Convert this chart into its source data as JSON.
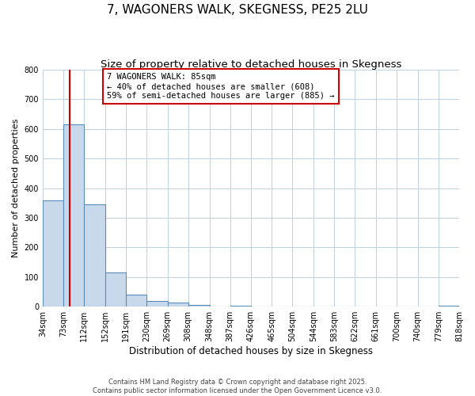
{
  "title": "7, WAGONERS WALK, SKEGNESS, PE25 2LU",
  "subtitle": "Size of property relative to detached houses in Skegness",
  "xlabel": "Distribution of detached houses by size in Skegness",
  "ylabel": "Number of detached properties",
  "bar_edges": [
    34,
    73,
    112,
    152,
    191,
    230,
    269,
    308,
    348,
    387,
    426,
    465,
    504,
    544,
    583,
    622,
    661,
    700,
    740,
    779,
    818
  ],
  "bar_heights": [
    360,
    615,
    345,
    115,
    40,
    20,
    13,
    5,
    0,
    3,
    0,
    0,
    0,
    0,
    0,
    0,
    0,
    0,
    0,
    3
  ],
  "bar_color": "#c9d9ec",
  "bar_edge_color": "#5b8db8",
  "bar_linewidth": 0.8,
  "vline_x": 85,
  "vline_color": "#cc0000",
  "vline_linewidth": 1.5,
  "annotation_line1": "7 WAGONERS WALK: 85sqm",
  "annotation_line2": "← 40% of detached houses are smaller (608)",
  "annotation_line3": "59% of semi-detached houses are larger (885) →",
  "annotation_fontsize": 7.5,
  "annotation_box_color": "#ffffff",
  "annotation_box_edge": "#cc0000",
  "ylim": [
    0,
    800
  ],
  "yticks": [
    0,
    100,
    200,
    300,
    400,
    500,
    600,
    700,
    800
  ],
  "tick_labels": [
    "34sqm",
    "73sqm",
    "112sqm",
    "152sqm",
    "191sqm",
    "230sqm",
    "269sqm",
    "308sqm",
    "348sqm",
    "387sqm",
    "426sqm",
    "465sqm",
    "504sqm",
    "544sqm",
    "583sqm",
    "622sqm",
    "661sqm",
    "700sqm",
    "740sqm",
    "779sqm",
    "818sqm"
  ],
  "background_color": "#ffffff",
  "grid_color": "#c0cfe0",
  "footer_line1": "Contains HM Land Registry data © Crown copyright and database right 2025.",
  "footer_line2": "Contains public sector information licensed under the Open Government Licence v3.0.",
  "title_fontsize": 11,
  "subtitle_fontsize": 9.5,
  "ylabel_fontsize": 8,
  "xlabel_fontsize": 8.5,
  "tick_fontsize": 7
}
